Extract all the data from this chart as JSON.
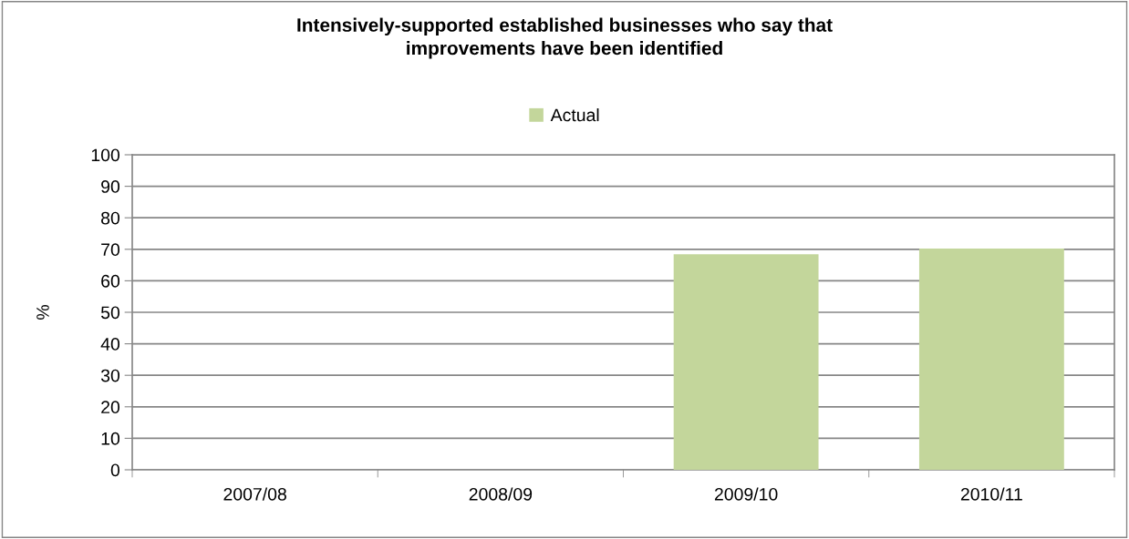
{
  "chart_data": {
    "type": "bar",
    "title": "Intensively-supported established businesses who say that\nimprovements have been identified",
    "categories": [
      "2007/08",
      "2008/09",
      "2009/10",
      "2010/11"
    ],
    "series": [
      {
        "name": "Actual",
        "color": "#c3d69b",
        "values": [
          null,
          null,
          68.4,
          70.2
        ]
      }
    ],
    "ylabel": "%",
    "ylim": [
      0,
      100
    ],
    "yticks": [
      0,
      10,
      20,
      30,
      40,
      50,
      60,
      70,
      80,
      90,
      100
    ],
    "grid": "y",
    "legend": "top"
  }
}
